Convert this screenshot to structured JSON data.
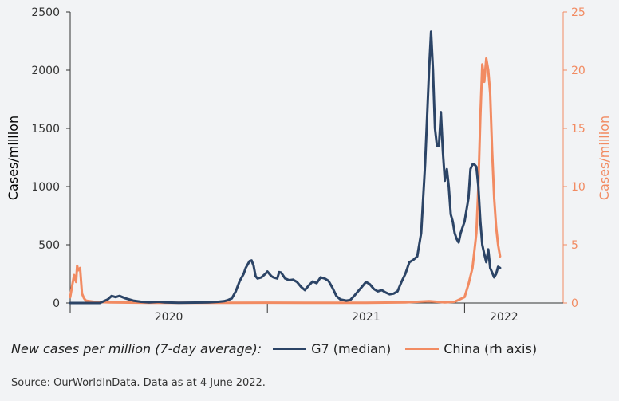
{
  "chart_data": {
    "type": "line",
    "left_axis": {
      "label": "Cases/million",
      "ylim": [
        0,
        2500
      ],
      "ticks": [
        0,
        500,
        1000,
        1500,
        2000,
        2500
      ],
      "color": "#2c4466"
    },
    "right_axis": {
      "label": "Cases/million",
      "ylim": [
        0,
        25
      ],
      "ticks": [
        0,
        5,
        10,
        15,
        20,
        25
      ],
      "color": "#f28b62"
    },
    "x_axis": {
      "range": [
        2020.0,
        2022.5
      ],
      "year_labels": [
        {
          "label": "2020",
          "x": 2020.5
        },
        {
          "label": "2021",
          "x": 2021.5
        },
        {
          "label": "2022",
          "x": 2022.2
        }
      ],
      "year_boundaries": [
        2020.0,
        2021.0,
        2022.0
      ]
    },
    "series": [
      {
        "name": "G7 (median)",
        "axis": "left",
        "color": "#2c4466",
        "points": [
          [
            2020.0,
            0
          ],
          [
            2020.15,
            0
          ],
          [
            2020.19,
            30
          ],
          [
            2020.21,
            60
          ],
          [
            2020.23,
            50
          ],
          [
            2020.25,
            60
          ],
          [
            2020.28,
            40
          ],
          [
            2020.32,
            20
          ],
          [
            2020.36,
            10
          ],
          [
            2020.4,
            5
          ],
          [
            2020.45,
            10
          ],
          [
            2020.48,
            5
          ],
          [
            2020.55,
            2
          ],
          [
            2020.7,
            5
          ],
          [
            2020.75,
            10
          ],
          [
            2020.78,
            15
          ],
          [
            2020.8,
            25
          ],
          [
            2020.82,
            40
          ],
          [
            2020.84,
            100
          ],
          [
            2020.86,
            190
          ],
          [
            2020.88,
            250
          ],
          [
            2020.89,
            300
          ],
          [
            2020.9,
            330
          ],
          [
            2020.91,
            360
          ],
          [
            2020.92,
            365
          ],
          [
            2020.93,
            320
          ],
          [
            2020.94,
            230
          ],
          [
            2020.95,
            210
          ],
          [
            2020.97,
            220
          ],
          [
            2020.99,
            250
          ],
          [
            2021.0,
            270
          ],
          [
            2021.02,
            230
          ],
          [
            2021.03,
            220
          ],
          [
            2021.05,
            210
          ],
          [
            2021.06,
            265
          ],
          [
            2021.07,
            260
          ],
          [
            2021.09,
            210
          ],
          [
            2021.11,
            195
          ],
          [
            2021.13,
            200
          ],
          [
            2021.15,
            180
          ],
          [
            2021.17,
            140
          ],
          [
            2021.19,
            110
          ],
          [
            2021.21,
            150
          ],
          [
            2021.23,
            185
          ],
          [
            2021.25,
            170
          ],
          [
            2021.27,
            220
          ],
          [
            2021.29,
            210
          ],
          [
            2021.31,
            190
          ],
          [
            2021.33,
            130
          ],
          [
            2021.35,
            60
          ],
          [
            2021.37,
            30
          ],
          [
            2021.4,
            20
          ],
          [
            2021.42,
            25
          ],
          [
            2021.44,
            60
          ],
          [
            2021.46,
            100
          ],
          [
            2021.48,
            140
          ],
          [
            2021.5,
            180
          ],
          [
            2021.52,
            160
          ],
          [
            2021.54,
            120
          ],
          [
            2021.56,
            100
          ],
          [
            2021.58,
            110
          ],
          [
            2021.6,
            90
          ],
          [
            2021.62,
            75
          ],
          [
            2021.64,
            80
          ],
          [
            2021.66,
            100
          ],
          [
            2021.68,
            180
          ],
          [
            2021.7,
            250
          ],
          [
            2021.72,
            350
          ],
          [
            2021.74,
            370
          ],
          [
            2021.76,
            400
          ],
          [
            2021.78,
            600
          ],
          [
            2021.8,
            1200
          ],
          [
            2021.82,
            2000
          ],
          [
            2021.83,
            2330
          ],
          [
            2021.84,
            2000
          ],
          [
            2021.85,
            1500
          ],
          [
            2021.86,
            1350
          ],
          [
            2021.87,
            1350
          ],
          [
            2021.88,
            1640
          ],
          [
            2021.89,
            1300
          ],
          [
            2021.9,
            1050
          ],
          [
            2021.91,
            1150
          ],
          [
            2021.92,
            1000
          ],
          [
            2021.93,
            760
          ],
          [
            2021.94,
            700
          ],
          [
            2021.95,
            600
          ],
          [
            2021.96,
            550
          ],
          [
            2021.97,
            520
          ],
          [
            2021.98,
            600
          ],
          [
            2022.0,
            700
          ],
          [
            2022.02,
            900
          ],
          [
            2022.03,
            1150
          ],
          [
            2022.04,
            1190
          ],
          [
            2022.05,
            1190
          ],
          [
            2022.06,
            1170
          ],
          [
            2022.07,
            1000
          ],
          [
            2022.08,
            700
          ],
          [
            2022.09,
            500
          ],
          [
            2022.1,
            420
          ],
          [
            2022.11,
            350
          ],
          [
            2022.12,
            460
          ],
          [
            2022.13,
            300
          ],
          [
            2022.14,
            260
          ],
          [
            2022.15,
            220
          ],
          [
            2022.16,
            250
          ],
          [
            2022.17,
            310
          ],
          [
            2022.18,
            300
          ]
        ]
      },
      {
        "name": "China (rh axis)",
        "axis": "right",
        "color": "#f28b62",
        "points": [
          [
            2020.0,
            0.5
          ],
          [
            2020.01,
            1.5
          ],
          [
            2020.02,
            2.4
          ],
          [
            2020.03,
            1.8
          ],
          [
            2020.035,
            3.2
          ],
          [
            2020.04,
            2.8
          ],
          [
            2020.05,
            3.0
          ],
          [
            2020.06,
            0.8
          ],
          [
            2020.07,
            0.4
          ],
          [
            2020.08,
            0.2
          ],
          [
            2020.12,
            0.1
          ],
          [
            2020.2,
            0.05
          ],
          [
            2020.4,
            0.02
          ],
          [
            2020.8,
            0.02
          ],
          [
            2021.0,
            0.03
          ],
          [
            2021.2,
            0.02
          ],
          [
            2021.5,
            0.02
          ],
          [
            2021.7,
            0.05
          ],
          [
            2021.82,
            0.15
          ],
          [
            2021.9,
            0.05
          ],
          [
            2021.95,
            0.1
          ],
          [
            2022.0,
            0.5
          ],
          [
            2022.02,
            1.6
          ],
          [
            2022.04,
            3.0
          ],
          [
            2022.06,
            6.0
          ],
          [
            2022.07,
            10.0
          ],
          [
            2022.08,
            16.0
          ],
          [
            2022.09,
            20.5
          ],
          [
            2022.1,
            19.0
          ],
          [
            2022.11,
            21.0
          ],
          [
            2022.12,
            20.0
          ],
          [
            2022.13,
            18.0
          ],
          [
            2022.14,
            13.0
          ],
          [
            2022.15,
            9.0
          ],
          [
            2022.16,
            6.5
          ],
          [
            2022.17,
            5.0
          ],
          [
            2022.18,
            4.0
          ]
        ]
      }
    ]
  },
  "legend": {
    "intro": "New cases per million (7-day average):",
    "items": [
      {
        "label": "G7 (median)",
        "color": "#2c4466"
      },
      {
        "label": "China (rh axis)",
        "color": "#f28b62"
      }
    ]
  },
  "source": "Source: OurWorldInData. Data as at 4 June 2022."
}
